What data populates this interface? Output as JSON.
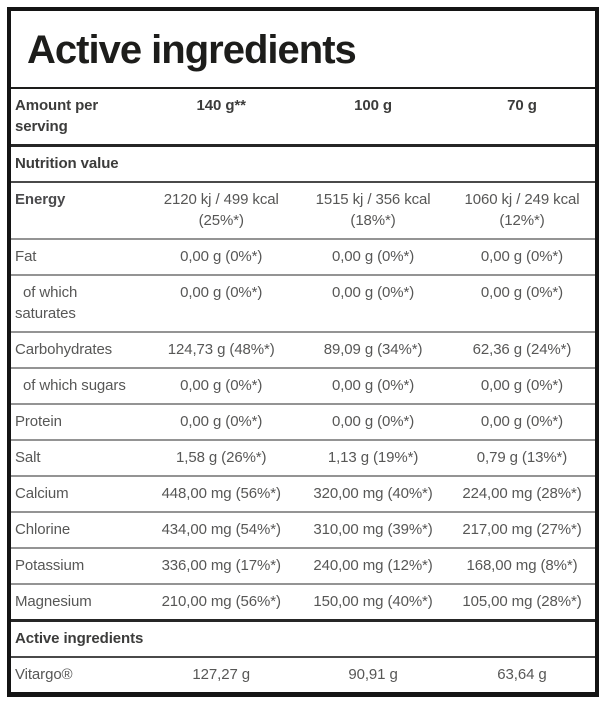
{
  "title": "Active ingredients",
  "colors": {
    "frame_border": "#141414",
    "heading_text": "#3c3c3b",
    "body_text": "#575756",
    "row_divider": "#949494"
  },
  "header": {
    "label": "Amount per serving",
    "columns": [
      "140 g**",
      "100 g",
      "70 g"
    ]
  },
  "sections": [
    {
      "heading": "Nutrition value",
      "rows": [
        {
          "label": "Energy",
          "bold": true,
          "indent": false,
          "values": [
            "2120 kj / 499 kcal\n(25%*)",
            "1515 kj / 356 kcal\n(18%*)",
            "1060 kj / 249 kcal\n(12%*)"
          ]
        },
        {
          "label": "Fat",
          "bold": false,
          "indent": false,
          "values": [
            "0,00 g (0%*)",
            "0,00 g (0%*)",
            "0,00 g (0%*)"
          ]
        },
        {
          "label": "of which saturates",
          "bold": false,
          "indent": true,
          "values": [
            "0,00 g (0%*)",
            "0,00 g (0%*)",
            "0,00 g (0%*)"
          ]
        },
        {
          "label": "Carbohydrates",
          "bold": false,
          "indent": false,
          "values": [
            "124,73 g (48%*)",
            "89,09 g (34%*)",
            "62,36 g (24%*)"
          ]
        },
        {
          "label": "of which sugars",
          "bold": false,
          "indent": true,
          "values": [
            "0,00 g (0%*)",
            "0,00 g (0%*)",
            "0,00 g (0%*)"
          ]
        },
        {
          "label": "Protein",
          "bold": false,
          "indent": false,
          "values": [
            "0,00 g (0%*)",
            "0,00 g (0%*)",
            "0,00 g (0%*)"
          ]
        },
        {
          "label": "Salt",
          "bold": false,
          "indent": false,
          "values": [
            "1,58 g (26%*)",
            "1,13 g (19%*)",
            "0,79 g (13%*)"
          ]
        },
        {
          "label": "Calcium",
          "bold": false,
          "indent": false,
          "values": [
            "448,00 mg (56%*)",
            "320,00 mg (40%*)",
            "224,00 mg (28%*)"
          ]
        },
        {
          "label": "Chlorine",
          "bold": false,
          "indent": false,
          "values": [
            "434,00 mg (54%*)",
            "310,00 mg (39%*)",
            "217,00 mg (27%*)"
          ]
        },
        {
          "label": "Potassium",
          "bold": false,
          "indent": false,
          "values": [
            "336,00 mg (17%*)",
            "240,00 mg (12%*)",
            "168,00 mg (8%*)"
          ]
        },
        {
          "label": "Magnesium",
          "bold": false,
          "indent": false,
          "values": [
            "210,00 mg (56%*)",
            "150,00 mg (40%*)",
            "105,00 mg (28%*)"
          ]
        }
      ]
    },
    {
      "heading": "Active ingredients",
      "rows": [
        {
          "label": "Vitargo®",
          "bold": false,
          "indent": false,
          "values": [
            "127,27 g",
            "90,91 g",
            "63,64 g"
          ]
        }
      ]
    }
  ]
}
